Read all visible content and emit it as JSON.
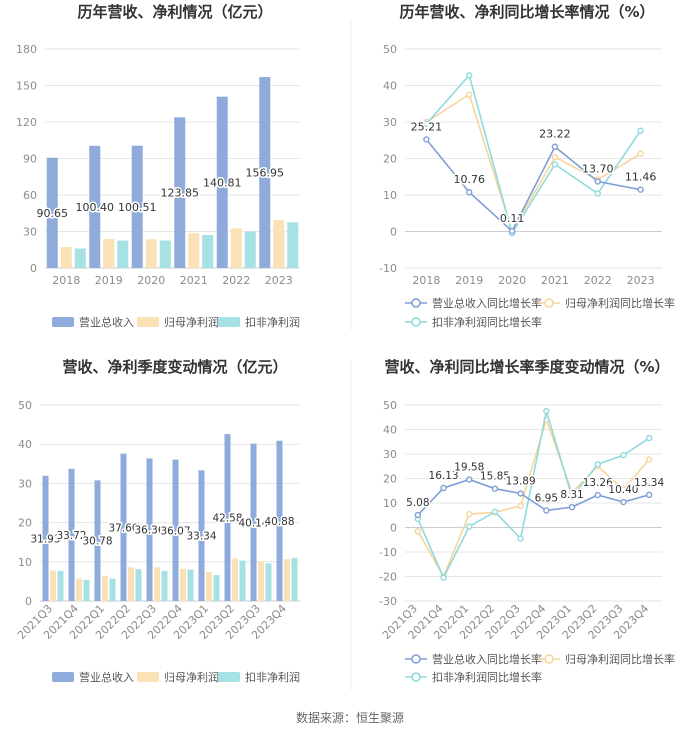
{
  "colors": {
    "revenue": "#8eabdc",
    "parent_profit": "#fbe2b6",
    "deducted_profit": "#a6e1e3",
    "revenue_line": "#7f9ed6",
    "parent_line": "#f7d59b",
    "deducted_line": "#8fdadd",
    "grid": "#e6e6e6",
    "axis_text": "#8c8c8c",
    "title": "#333333"
  },
  "chart_data": [
    {
      "type": "bar",
      "title": "历年营收、净利情况（亿元）",
      "categories": [
        "2018",
        "2019",
        "2020",
        "2021",
        "2022",
        "2023"
      ],
      "ylim": [
        0,
        180
      ],
      "yticks": [
        "0",
        "30",
        "60",
        "90",
        "120",
        "150",
        "180"
      ],
      "series": [
        {
          "name": "营业总收入",
          "values": [
            90.65,
            100.4,
            100.51,
            123.85,
            140.81,
            156.95
          ],
          "labels": [
            "90.65",
            "100.40",
            "100.51",
            "123.85",
            "140.81",
            "156.95"
          ]
        },
        {
          "name": "归母净利润",
          "values": [
            17.2,
            23.8,
            23.6,
            28.6,
            32.6,
            39.4
          ]
        },
        {
          "name": "扣非净利润",
          "values": [
            16.0,
            22.5,
            22.6,
            27.1,
            30.0,
            37.6
          ]
        }
      ]
    },
    {
      "type": "line",
      "title": "历年营收、净利同比增长率情况（%）",
      "categories": [
        "2018",
        "2019",
        "2020",
        "2021",
        "2022",
        "2023"
      ],
      "ylim": [
        -10,
        50
      ],
      "yticks": [
        "-10",
        "0",
        "10",
        "20",
        "30",
        "40",
        "50"
      ],
      "series": [
        {
          "name": "营业总收入同比增长率",
          "values": [
            25.21,
            10.76,
            0.11,
            23.22,
            13.7,
            11.46
          ],
          "labels": [
            "25.21",
            "10.76",
            "0.11",
            "23.22",
            "13.70",
            "11.46"
          ]
        },
        {
          "name": "归母净利润同比增长率",
          "values": [
            30.0,
            37.5,
            0.0,
            20.4,
            14.2,
            21.3
          ]
        },
        {
          "name": "扣非净利润同比增长率",
          "values": [
            29.5,
            42.8,
            -0.5,
            18.4,
            10.4,
            27.6
          ]
        }
      ]
    },
    {
      "type": "bar",
      "title": "营收、净利季度变动情况（亿元）",
      "categories": [
        "2021Q3",
        "2021Q4",
        "2022Q1",
        "2022Q2",
        "2022Q3",
        "2022Q4",
        "2023Q1",
        "2023Q2",
        "2023Q3",
        "2023Q4"
      ],
      "ylim": [
        0,
        50
      ],
      "yticks": [
        "0",
        "10",
        "20",
        "30",
        "40",
        "50"
      ],
      "series": [
        {
          "name": "营业总收入",
          "values": [
            31.93,
            33.72,
            30.78,
            37.6,
            36.36,
            36.07,
            33.34,
            42.58,
            40.14,
            40.88
          ],
          "labels": [
            "31.93",
            "33.72",
            "30.78",
            "37.60",
            "36.36",
            "36.07",
            "33.34",
            "42.58",
            "40.14",
            "40.88"
          ]
        },
        {
          "name": "归母净利润",
          "values": [
            7.8,
            5.7,
            6.4,
            8.6,
            8.6,
            8.2,
            7.4,
            10.9,
            10.1,
            10.7
          ]
        },
        {
          "name": "扣非净利润",
          "values": [
            7.7,
            5.4,
            5.7,
            8.1,
            7.7,
            8.0,
            6.6,
            10.3,
            9.6,
            11.0
          ]
        }
      ]
    },
    {
      "type": "line",
      "title": "营收、净利同比增长率季度变动情况（%）",
      "categories": [
        "2021Q3",
        "2021Q4",
        "2022Q1",
        "2022Q2",
        "2022Q3",
        "2022Q4",
        "2023Q1",
        "2023Q2",
        "2023Q3",
        "2023Q4"
      ],
      "ylim": [
        -30,
        50
      ],
      "yticks": [
        "-30",
        "-20",
        "-10",
        "0",
        "10",
        "20",
        "30",
        "40",
        "50"
      ],
      "series": [
        {
          "name": "营业总收入同比增长率",
          "values": [
            5.08,
            16.13,
            19.58,
            15.85,
            13.89,
            6.95,
            8.31,
            13.26,
            10.4,
            13.34
          ],
          "labels": [
            "5.08",
            "16.13",
            "19.58",
            "15.85",
            "13.89",
            "6.95",
            "8.31",
            "13.26",
            "10.40",
            "13.34"
          ]
        },
        {
          "name": "归母净利润同比增长率",
          "values": [
            -1.5,
            -20.0,
            5.5,
            6.2,
            8.8,
            44.0,
            14.3,
            25.0,
            15.5,
            27.8
          ]
        },
        {
          "name": "扣非净利润同比增长率",
          "values": [
            3.5,
            -20.5,
            0.4,
            6.4,
            -4.5,
            47.5,
            12.5,
            25.8,
            29.5,
            36.5
          ]
        }
      ]
    }
  ],
  "source": "数据来源：恒生聚源"
}
